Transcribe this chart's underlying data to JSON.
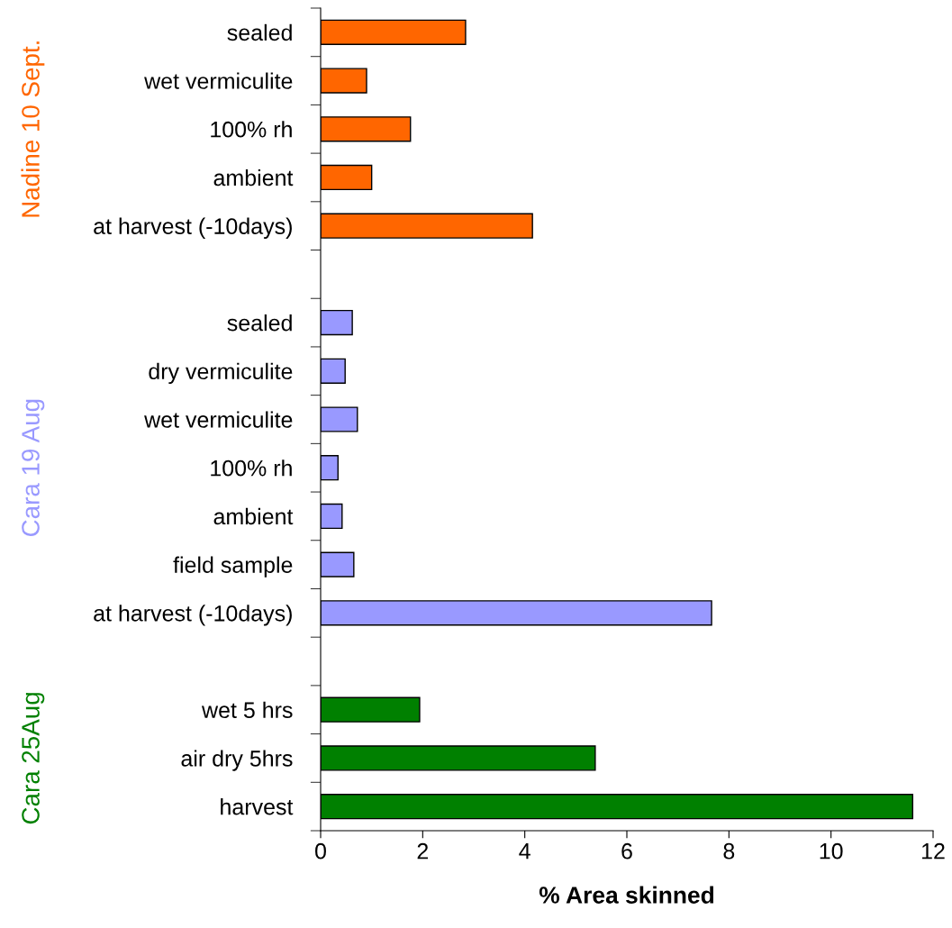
{
  "chart_data": {
    "type": "bar",
    "orientation": "horizontal",
    "xlabel": "% Area skinned",
    "categories": [
      "sealed",
      "wet vermiculite",
      "100% rh",
      "ambient",
      "at harvest (-10days)",
      null,
      "sealed",
      "dry vermiculite",
      "wet vermiculite",
      "100% rh",
      "ambient",
      "field sample",
      "at harvest (-10days)",
      null,
      "wet 5 hrs",
      "air dry 5hrs",
      "harvest"
    ],
    "series": [
      {
        "name": "Nadine 10 Sept.",
        "color": "#ff6600",
        "values": [
          2.84,
          0.9,
          1.76,
          1.0,
          4.15,
          null,
          null,
          null,
          null,
          null,
          null,
          null,
          null,
          null,
          null,
          null,
          null
        ]
      },
      {
        "name": "Cara 19 Aug",
        "color": "#9999ff",
        "values": [
          null,
          null,
          null,
          null,
          null,
          null,
          0.62,
          0.48,
          0.72,
          0.34,
          0.42,
          0.65,
          7.66,
          null,
          null,
          null,
          null
        ]
      },
      {
        "name": "Cara 25Aug",
        "color": "#008000",
        "values": [
          null,
          null,
          null,
          null,
          null,
          null,
          null,
          null,
          null,
          null,
          null,
          null,
          null,
          null,
          1.94,
          5.38,
          11.6
        ]
      }
    ],
    "xlim": [
      0,
      12
    ],
    "xticks": [
      0,
      2,
      4,
      6,
      8,
      10,
      12
    ],
    "grid": false,
    "legend": false
  }
}
